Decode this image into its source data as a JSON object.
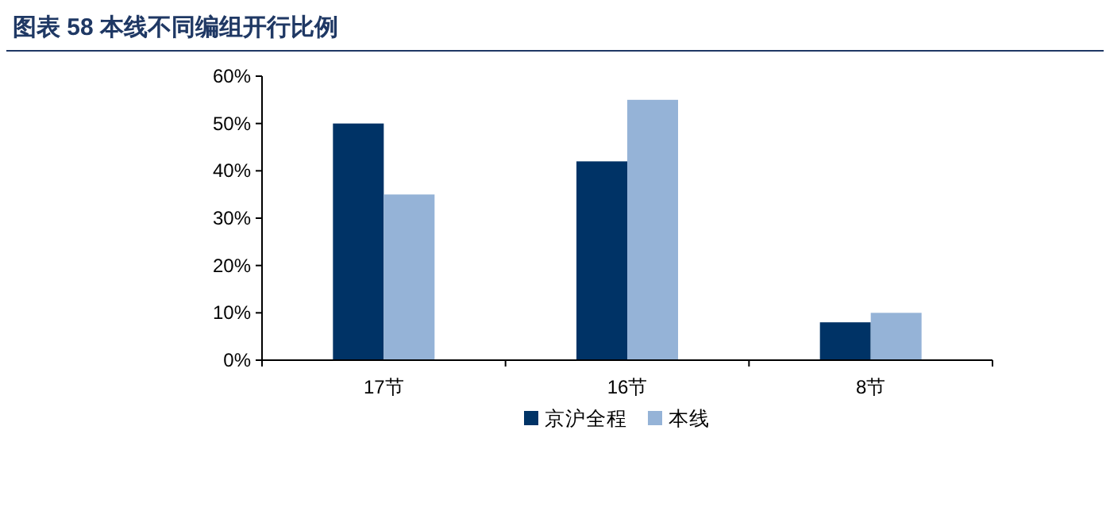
{
  "chart_data": {
    "type": "bar",
    "title": "图表 58   本线不同编组开行比例",
    "categories": [
      "17节",
      "16节",
      "8节"
    ],
    "series": [
      {
        "name": "京沪全程",
        "color": "#003366",
        "values": [
          50,
          42,
          8
        ]
      },
      {
        "name": "本线",
        "color": "#95b3d7",
        "values": [
          35,
          55,
          10
        ]
      }
    ],
    "ylim": [
      0,
      60
    ],
    "yticks": [
      {
        "value": 0,
        "label": "0%"
      },
      {
        "value": 10,
        "label": "10%"
      },
      {
        "value": 20,
        "label": "20%"
      },
      {
        "value": 30,
        "label": "30%"
      },
      {
        "value": 40,
        "label": "40%"
      },
      {
        "value": 50,
        "label": "50%"
      },
      {
        "value": 60,
        "label": "60%"
      }
    ],
    "grid": false,
    "legend": "bottom"
  }
}
